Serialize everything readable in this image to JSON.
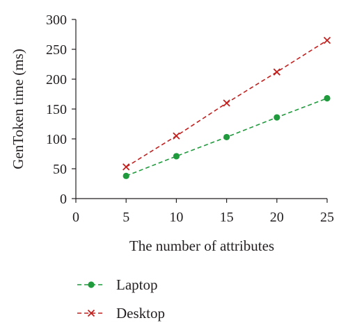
{
  "chart_data": {
    "type": "line",
    "title": "",
    "xlabel": "The number of attributes",
    "ylabel": "GenToken time (ms)",
    "xlim": [
      0,
      25
    ],
    "ylim": [
      0,
      300
    ],
    "xticks": [
      0,
      5,
      10,
      15,
      20,
      25
    ],
    "yticks": [
      0,
      50,
      100,
      150,
      200,
      250,
      300
    ],
    "grid": false,
    "legend_position": "bottom-left",
    "x": [
      5,
      10,
      15,
      20,
      25
    ],
    "series": [
      {
        "name": "Laptop",
        "values": [
          38,
          71,
          103,
          136,
          168
        ],
        "color": "#1f9a3c",
        "marker": "circle",
        "line_style": "dashed"
      },
      {
        "name": "Desktop",
        "values": [
          53,
          105,
          160,
          212,
          265
        ],
        "color": "#c0201e",
        "marker": "x",
        "line_style": "dashed"
      }
    ]
  }
}
